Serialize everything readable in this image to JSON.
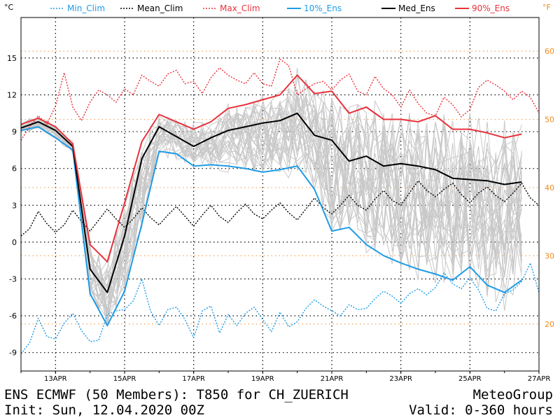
{
  "chart_data": {
    "type": "line",
    "unit_left": "°C",
    "unit_right": "°F",
    "x_axis": {
      "start": "2020-04-12",
      "end": "2020-04-27",
      "ticks": [
        "13APR",
        "15APR",
        "17APR",
        "19APR",
        "21APR",
        "23APR",
        "25APR",
        "27APR"
      ]
    },
    "y_left": {
      "ylim": [
        -10.5,
        18.3
      ],
      "ticks": [
        -9,
        -6,
        -3,
        0,
        3,
        6,
        9,
        12,
        15
      ]
    },
    "y_right": {
      "ticks": [
        20,
        30,
        40,
        50,
        60
      ]
    },
    "grid": true,
    "legend_position": "top",
    "series": [
      {
        "name": "Min_Clim",
        "color": "#1e9ce6",
        "style": "dotted",
        "x": [
          0,
          0.25,
          0.5,
          0.75,
          1,
          1.25,
          1.5,
          1.75,
          2,
          2.25,
          2.5,
          2.75,
          3,
          3.25,
          3.5,
          3.75,
          4,
          4.25,
          4.5,
          4.75,
          5,
          5.25,
          5.5,
          5.75,
          6,
          6.25,
          6.5,
          6.75,
          7,
          7.25,
          7.5,
          7.75,
          8,
          8.25,
          8.5,
          8.75,
          9,
          9.25,
          9.5,
          9.75,
          10,
          10.25,
          10.5,
          10.75,
          11,
          11.25,
          11.5,
          11.75,
          12,
          12.25,
          12.5,
          12.75,
          13,
          13.25,
          13.5,
          13.75,
          14,
          14.25,
          14.5,
          14.75,
          15
        ],
        "y": [
          -9.1,
          -8.2,
          -6.2,
          -7.7,
          -7.9,
          -6.6,
          -5.8,
          -7.2,
          -8.1,
          -8.0,
          -5.9,
          -5.6,
          -5.5,
          -4.8,
          -3.0,
          -5.6,
          -6.8,
          -5.5,
          -5.3,
          -6.3,
          -7.8,
          -5.6,
          -5.2,
          -7.4,
          -5.9,
          -6.8,
          -5.8,
          -5.3,
          -6.3,
          -7.3,
          -5.7,
          -6.9,
          -6.5,
          -5.4,
          -4.7,
          -5.2,
          -5.6,
          -6.0,
          -5.1,
          -5.5,
          -5.4,
          -4.6,
          -4.0,
          -4.4,
          -5.0,
          -4.2,
          -3.8,
          -4.3,
          -3.7,
          -2.5,
          -3.4,
          -3.8,
          -2.9,
          -3.9,
          -5.4,
          -5.6,
          -4.2,
          -3.9,
          -3.2,
          -1.7,
          -4.1
        ]
      },
      {
        "name": "Mean_Clim",
        "color": "#000000",
        "style": "dotted",
        "x": [
          0,
          0.25,
          0.5,
          0.75,
          1,
          1.25,
          1.5,
          1.75,
          2,
          2.25,
          2.5,
          2.75,
          3,
          3.25,
          3.5,
          3.75,
          4,
          4.25,
          4.5,
          4.75,
          5,
          5.25,
          5.5,
          5.75,
          6,
          6.25,
          6.5,
          6.75,
          7,
          7.25,
          7.5,
          7.75,
          8,
          8.25,
          8.5,
          8.75,
          9,
          9.25,
          9.5,
          9.75,
          10,
          10.25,
          10.5,
          10.75,
          11,
          11.25,
          11.5,
          11.75,
          12,
          12.25,
          12.5,
          12.75,
          13,
          13.25,
          13.5,
          13.75,
          14,
          14.25,
          14.5,
          14.75,
          15
        ],
        "y": [
          0.5,
          1.1,
          2.5,
          1.5,
          0.8,
          1.4,
          2.6,
          1.7,
          0.9,
          1.8,
          2.7,
          1.9,
          1.2,
          1.9,
          2.8,
          2.0,
          1.4,
          2.2,
          2.9,
          2.1,
          1.3,
          2.2,
          3.0,
          2.1,
          1.6,
          2.4,
          3.1,
          2.3,
          1.9,
          2.6,
          3.2,
          2.4,
          1.8,
          2.7,
          3.6,
          2.8,
          2.3,
          3.0,
          3.8,
          3.0,
          2.6,
          3.5,
          4.2,
          3.4,
          3.0,
          4.0,
          5.0,
          4.2,
          3.7,
          4.3,
          4.8,
          3.9,
          3.2,
          4.0,
          4.5,
          3.8,
          3.3,
          4.0,
          4.8,
          3.6,
          3.0
        ]
      },
      {
        "name": "Max_Clim",
        "color": "#e8323c",
        "style": "dotted",
        "x": [
          0,
          0.25,
          0.5,
          0.75,
          1,
          1.25,
          1.5,
          1.75,
          2,
          2.25,
          2.5,
          2.75,
          3,
          3.25,
          3.5,
          3.75,
          4,
          4.25,
          4.5,
          4.75,
          5,
          5.25,
          5.5,
          5.75,
          6,
          6.25,
          6.5,
          6.75,
          7,
          7.25,
          7.5,
          7.75,
          8,
          8.25,
          8.5,
          8.75,
          9,
          9.25,
          9.5,
          9.75,
          10,
          10.25,
          10.5,
          10.75,
          11,
          11.25,
          11.5,
          11.75,
          12,
          12.25,
          12.5,
          12.75,
          13,
          13.25,
          13.5,
          13.75,
          14,
          14.25,
          14.5,
          14.75,
          15
        ],
        "y": [
          8.3,
          9.4,
          10.3,
          9.6,
          11.1,
          13.8,
          11.0,
          9.9,
          11.4,
          12.4,
          12.0,
          11.4,
          12.5,
          12.0,
          13.6,
          13.1,
          12.7,
          13.7,
          14.0,
          12.9,
          13.1,
          12.1,
          13.4,
          14.2,
          13.6,
          13.2,
          12.9,
          13.8,
          12.9,
          12.7,
          14.9,
          14.4,
          12.0,
          12.5,
          12.9,
          13.1,
          12.4,
          13.2,
          13.7,
          12.3,
          12.0,
          13.5,
          12.5,
          12.0,
          11.0,
          12.4,
          11.3,
          10.5,
          10.3,
          11.8,
          11.2,
          10.2,
          10.8,
          12.6,
          13.2,
          12.8,
          12.3,
          11.6,
          12.3,
          11.8,
          10.5
        ]
      },
      {
        "name": "10%_Ens",
        "color": "#1e9ce6",
        "style": "solid",
        "x": [
          0,
          0.5,
          1,
          1.5,
          2,
          2.5,
          3,
          3.5,
          4,
          4.5,
          5,
          5.5,
          6,
          6.5,
          7,
          7.5,
          8,
          8.5,
          9,
          9.5,
          10,
          10.5,
          11,
          11.5,
          12,
          12.5,
          13,
          13.5,
          14,
          14.5
        ],
        "y": [
          9.1,
          9.4,
          8.5,
          7.5,
          -4.2,
          -6.8,
          -4.0,
          1.5,
          7.4,
          7.2,
          6.2,
          6.3,
          6.2,
          6.0,
          5.7,
          5.9,
          6.2,
          4.3,
          0.9,
          1.2,
          -0.2,
          -1.1,
          -1.7,
          -2.2,
          -2.6,
          -3.1,
          -2.0,
          -3.5,
          -4.1,
          -3.1
        ]
      },
      {
        "name": "Med_Ens",
        "color": "#000000",
        "style": "solid",
        "x": [
          0,
          0.5,
          1,
          1.5,
          2,
          2.5,
          3,
          3.5,
          4,
          4.5,
          5,
          5.5,
          6,
          6.5,
          7,
          7.5,
          8,
          8.5,
          9,
          9.5,
          10,
          10.5,
          11,
          11.5,
          12,
          12.5,
          13,
          13.5,
          14,
          14.5
        ],
        "y": [
          9.3,
          9.8,
          9.1,
          7.8,
          -2.2,
          -4.1,
          0.5,
          6.8,
          9.4,
          8.6,
          7.8,
          8.5,
          9.1,
          9.4,
          9.7,
          9.9,
          10.5,
          8.7,
          8.3,
          6.6,
          7.0,
          6.2,
          6.4,
          6.2,
          5.9,
          5.2,
          5.1,
          5.0,
          4.7,
          4.9
        ]
      },
      {
        "name": "90%_Ens",
        "color": "#e8323c",
        "style": "solid",
        "x": [
          0,
          0.5,
          1,
          1.5,
          2,
          2.5,
          3,
          3.5,
          4,
          4.5,
          5,
          5.5,
          6,
          6.5,
          7,
          7.5,
          8,
          8.5,
          9,
          9.5,
          10,
          10.5,
          11,
          11.5,
          12,
          12.5,
          13,
          13.5,
          14,
          14.5
        ],
        "y": [
          9.6,
          10.1,
          9.4,
          8.0,
          -0.2,
          -1.6,
          3.2,
          8.2,
          10.4,
          9.8,
          9.2,
          9.8,
          10.9,
          11.2,
          11.6,
          12.0,
          13.6,
          12.1,
          12.3,
          10.5,
          11.0,
          10.0,
          10.0,
          9.8,
          10.3,
          9.2,
          9.2,
          8.9,
          8.5,
          8.8
        ]
      }
    ]
  },
  "footer": {
    "line1_left": "ENS ECMWF (50 Members): T850 for CH_ZUERICH",
    "line2_left": "Init: Sun, 12.04.2020 00Z",
    "line1_right": "MeteoGroup",
    "line2_right": "Valid: 0-360 hours"
  }
}
